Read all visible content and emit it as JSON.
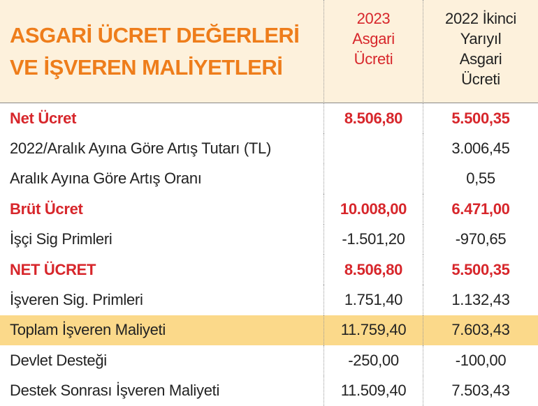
{
  "header": {
    "title": [
      "ASGARİ ÜCRET DEĞERLERİ",
      "VE İŞVEREN MALİYETLERİ"
    ],
    "columns": [
      [
        "2023",
        "Asgari",
        "Ücreti"
      ],
      [
        "2022 İkinci",
        "Yarıyıl",
        "Asgari",
        "Ücreti"
      ]
    ]
  },
  "table": {
    "rows": [
      {
        "label": "Net Ücret",
        "values": [
          "8.506,80",
          "5.500,35"
        ],
        "emphasis": true
      },
      {
        "label": "2022/Aralık Ayına Göre Artış Tutarı (TL)",
        "values": [
          null,
          "3.006,45"
        ]
      },
      {
        "label": "Aralık Ayına Göre Artış Oranı",
        "values": [
          null,
          "0,55"
        ]
      },
      {
        "label": "Brüt Ücret",
        "values": [
          "10.008,00",
          "6.471,00"
        ],
        "emphasis": true
      },
      {
        "label": "İşçi Sig Primleri",
        "values": [
          "-1.501,20",
          "-970,65"
        ]
      },
      {
        "label": "NET ÜCRET",
        "values": [
          "8.506,80",
          "5.500,35"
        ],
        "emphasis": true
      },
      {
        "label": "İşveren Sig. Primleri",
        "values": [
          "1.751,40",
          "1.132,43"
        ]
      },
      {
        "label": "Toplam İşveren Maliyeti",
        "values": [
          "11.759,40",
          "7.603,43"
        ],
        "highlight": true
      },
      {
        "label": "Devlet Desteği",
        "values": [
          "-250,00",
          "-100,00"
        ]
      },
      {
        "label": "Destek Sonrası İşveren Maliyeti",
        "values": [
          "11.509,40",
          "7.503,43"
        ]
      }
    ]
  }
}
